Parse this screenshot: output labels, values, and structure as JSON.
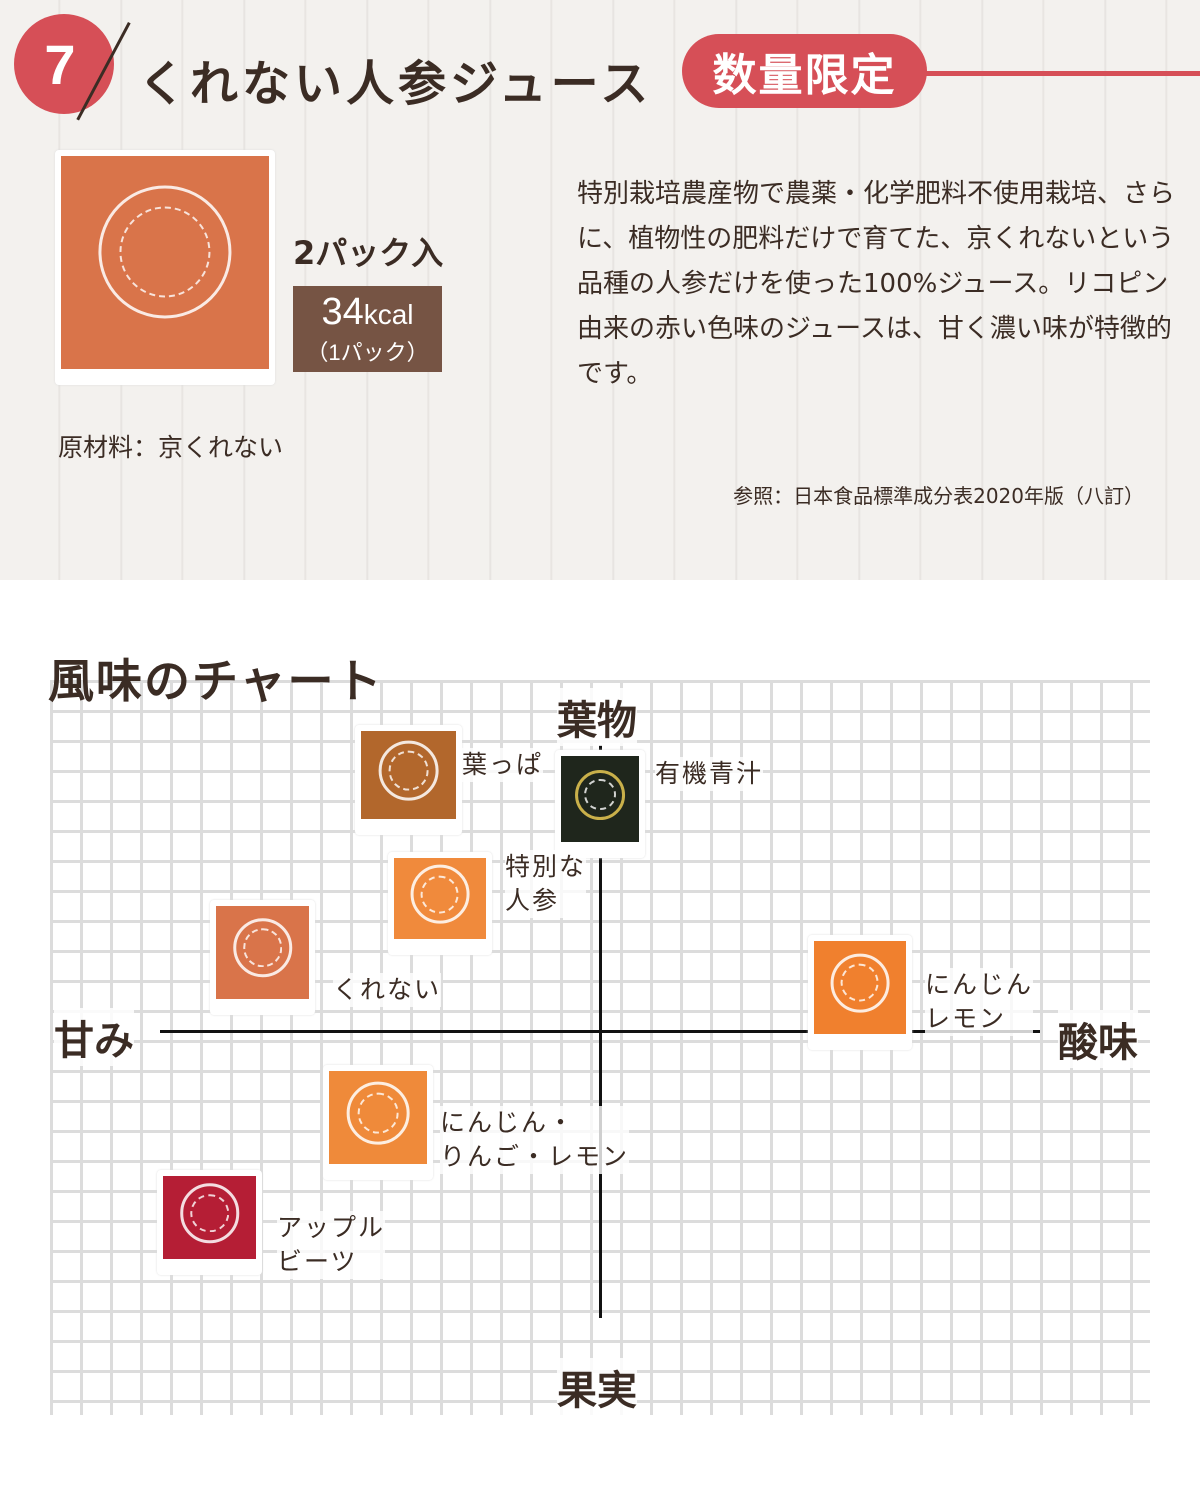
{
  "header": {
    "number": "7",
    "title": "くれない人参ジュース",
    "badge": "数量限定"
  },
  "product": {
    "packs": "2パック入",
    "kcal_value": "34",
    "kcal_unit": "kcal",
    "kcal_note": "（1パック）",
    "ingredients": "原材料：京くれない",
    "description": "特別栽培農産物で農薬・化学肥料不使用栽培、さらに、植物性の肥料だけで育てた、京くれないという品種の人参だけを使った100%ジュース。リコピン由来の赤い色味のジュースは、甘く濃い味が特徴的です。",
    "reference": "参照：日本食品標準成分表2020年版（八訂）",
    "package_color": "#d9744a"
  },
  "chart": {
    "title": "風味のチャート",
    "axis_top": "葉物",
    "axis_bottom": "果実",
    "axis_left": "甘み",
    "axis_right": "酸味",
    "items": [
      {
        "label": "葉っぱ",
        "color": "#b2672c"
      },
      {
        "label": "有機青汁",
        "color": "#1f261c"
      },
      {
        "label": "特別な\n人参",
        "color": "#f08a3c"
      },
      {
        "label": "くれない",
        "color": "#d9744a"
      },
      {
        "label": "にんじん\nレモン",
        "color": "#f0802e"
      },
      {
        "label": "にんじん・\nりんご・レモン",
        "color": "#ef8a3a"
      },
      {
        "label": "アップル\nビーツ",
        "color": "#b51e35"
      }
    ]
  },
  "colors": {
    "accent": "#d64f57",
    "kcal_box": "#765444",
    "text": "#3b2c24"
  }
}
